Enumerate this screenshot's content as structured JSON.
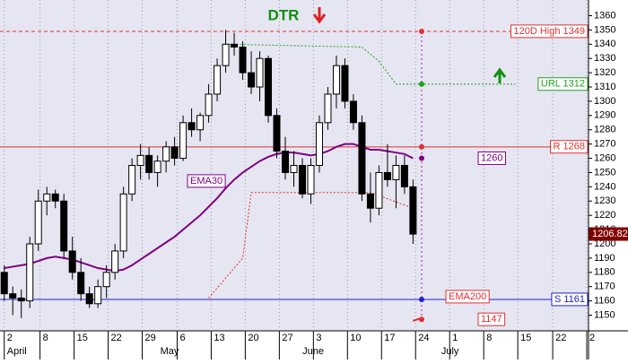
{
  "chart_data": {
    "type": "candlestick",
    "title": "DTR",
    "ylim": [
      1139,
      1371
    ],
    "yticks": [
      1150,
      1160,
      1170,
      1180,
      1190,
      1200,
      1210,
      1220,
      1230,
      1240,
      1250,
      1260,
      1270,
      1280,
      1290,
      1300,
      1310,
      1320,
      1330,
      1340,
      1350,
      1360
    ],
    "xlim": [
      -0.5,
      68.5
    ],
    "xticks": [
      {
        "value": 0,
        "label": "2"
      },
      {
        "value": 4.2,
        "label": "8"
      },
      {
        "value": 8.2,
        "label": "15"
      },
      {
        "value": 12.2,
        "label": "22"
      },
      {
        "value": 16.2,
        "label": "29"
      },
      {
        "value": 20.3,
        "label": "6"
      },
      {
        "value": 24.3,
        "label": "13"
      },
      {
        "value": 28.3,
        "label": "20"
      },
      {
        "value": 32.3,
        "label": "27"
      },
      {
        "value": 36.3,
        "label": "3"
      },
      {
        "value": 40.3,
        "label": "10"
      },
      {
        "value": 44.3,
        "label": "17"
      },
      {
        "value": 48.3,
        "label": "24"
      },
      {
        "value": 52.3,
        "label": "1"
      },
      {
        "value": 56.3,
        "label": "8"
      },
      {
        "value": 60.3,
        "label": "15"
      },
      {
        "value": 64.4,
        "label": "22"
      },
      {
        "value": 68.4,
        "label": "2"
      }
    ],
    "months": [
      {
        "value": 0,
        "label": "April"
      },
      {
        "value": 18,
        "label": "May"
      },
      {
        "value": 34.7,
        "label": "June"
      },
      {
        "value": 51,
        "label": "July"
      }
    ],
    "grid": true,
    "up_color": "#ffffff",
    "down_color": "#000000",
    "candles": {
      "open": [
        1180,
        1165,
        1162,
        1160,
        1200,
        1230,
        1235,
        1230,
        1195,
        1180,
        1165,
        1158,
        1170,
        1180,
        1195,
        1235,
        1255,
        1262,
        1250,
        1258,
        1268,
        1260,
        1285,
        1280,
        1290,
        1305,
        1325,
        1340,
        1338,
        1320,
        1310,
        1330,
        1290,
        1265,
        1250,
        1255,
        1235,
        1255,
        1285,
        1305,
        1325,
        1300,
        1285,
        1235,
        1225,
        1250,
        1245,
        1255,
        1240
      ],
      "high": [
        1185,
        1170,
        1168,
        1205,
        1238,
        1240,
        1238,
        1235,
        1205,
        1190,
        1170,
        1175,
        1185,
        1200,
        1240,
        1260,
        1270,
        1268,
        1262,
        1272,
        1275,
        1290,
        1295,
        1292,
        1312,
        1330,
        1350,
        1348,
        1342,
        1335,
        1335,
        1332,
        1295,
        1275,
        1265,
        1260,
        1260,
        1290,
        1310,
        1332,
        1330,
        1305,
        1290,
        1250,
        1255,
        1270,
        1262,
        1262,
        1245
      ],
      "low": [
        1160,
        1150,
        1148,
        1155,
        1195,
        1220,
        1225,
        1190,
        1175,
        1160,
        1155,
        1155,
        1162,
        1175,
        1190,
        1230,
        1245,
        1245,
        1240,
        1250,
        1255,
        1258,
        1275,
        1272,
        1285,
        1300,
        1320,
        1332,
        1315,
        1305,
        1300,
        1285,
        1260,
        1245,
        1240,
        1232,
        1228,
        1250,
        1280,
        1295,
        1295,
        1280,
        1230,
        1215,
        1220,
        1240,
        1225,
        1235,
        1200
      ],
      "close": [
        1165,
        1162,
        1160,
        1200,
        1230,
        1235,
        1230,
        1195,
        1180,
        1165,
        1158,
        1170,
        1180,
        1195,
        1235,
        1255,
        1262,
        1250,
        1258,
        1268,
        1260,
        1285,
        1280,
        1290,
        1305,
        1325,
        1340,
        1338,
        1320,
        1310,
        1330,
        1290,
        1265,
        1250,
        1255,
        1235,
        1255,
        1285,
        1305,
        1325,
        1300,
        1285,
        1235,
        1225,
        1250,
        1245,
        1255,
        1240,
        1206.82
      ]
    },
    "ema": {
      "name": "EMA30",
      "color": "#800080",
      "values": [
        1183,
        1184,
        1185,
        1186,
        1188,
        1190,
        1191,
        1190,
        1189,
        1187,
        1185,
        1183,
        1182,
        1181,
        1182,
        1185,
        1189,
        1193,
        1197,
        1201,
        1205,
        1210,
        1215,
        1220,
        1226,
        1232,
        1239,
        1245,
        1250,
        1254,
        1258,
        1261,
        1263,
        1264,
        1264,
        1263,
        1262,
        1263,
        1265,
        1268,
        1270,
        1270,
        1268,
        1266,
        1266,
        1265,
        1264,
        1263,
        1260
      ]
    },
    "stops": [
      {
        "color": "#20a020",
        "x": [
          26,
          42,
          44,
          46,
          60
        ],
        "values": [
          1340,
          1338,
          1328,
          1312,
          1312
        ]
      },
      {
        "color": "#e03030",
        "x": [
          24,
          28,
          29,
          43,
          48
        ],
        "values": [
          1162,
          1190,
          1236,
          1236,
          1225
        ]
      }
    ],
    "levels": [
      {
        "value": 1349,
        "label": "120D High 1349",
        "color": "#e03030",
        "style": "dashed"
      },
      {
        "value": 1312,
        "label": "URL 1312",
        "color": "#20a020",
        "style": "none"
      },
      {
        "value": 1268,
        "label": "R 1268",
        "color": "#e03030",
        "style": "solid"
      },
      {
        "value": 1260,
        "label": "1260",
        "color": "#800080",
        "style": "none"
      },
      {
        "value": 1161,
        "label": "S 1161",
        "color": "#2020d0",
        "style": "solid"
      },
      {
        "value": 1147,
        "label": "1147",
        "color": "#e03030",
        "style": "none"
      }
    ],
    "ema200": {
      "name": "EMA200",
      "color": "#e03030",
      "x": [
        48,
        49
      ],
      "values": [
        1146,
        1148
      ]
    }
  }
}
